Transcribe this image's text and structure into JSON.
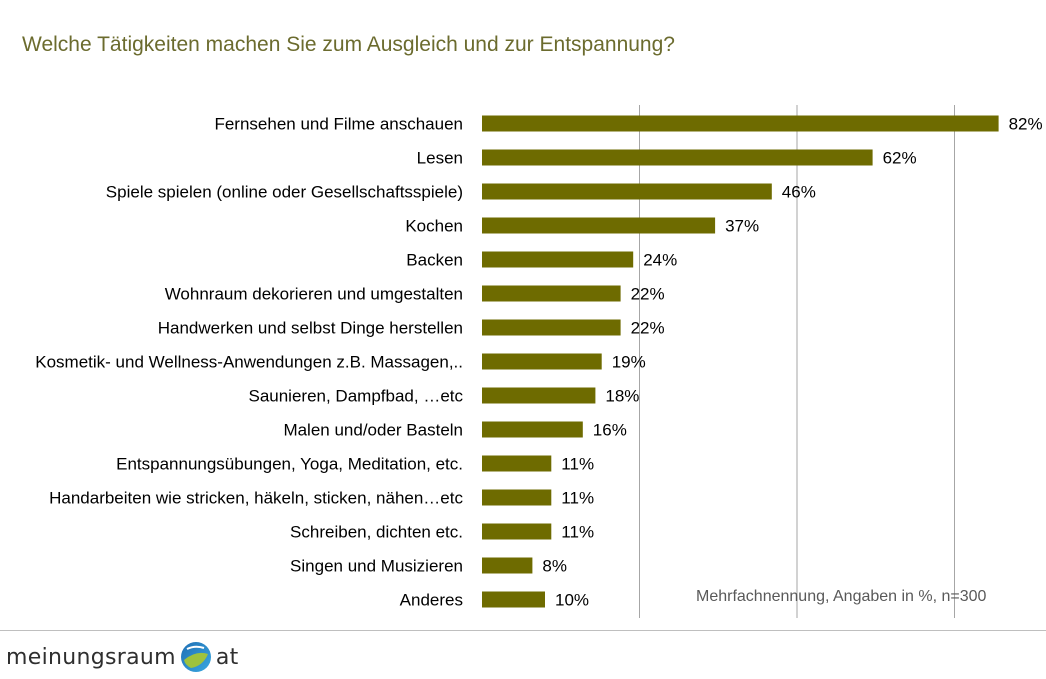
{
  "title": "Welche Tätigkeiten machen Sie zum Ausgleich und zur Entspannung?",
  "note": "Mehrfachnennung, Angaben in %, n=300",
  "logo": {
    "text_left": "meinungsraum",
    "text_right": "at",
    "icon": "globe-icon"
  },
  "colors": {
    "bar": "#6e6b00",
    "title": "#6b6b2e",
    "grid": "#a6a6a6"
  },
  "chart_data": {
    "type": "bar",
    "orientation": "horizontal",
    "title": "Welche Tätigkeiten machen Sie zum Ausgleich und zur Entspannung?",
    "xlim": [
      0,
      100
    ],
    "grid": true,
    "categories": [
      "Fernsehen und Filme anschauen",
      "Lesen",
      "Spiele spielen (online oder Gesellschaftsspiele)",
      "Kochen",
      "Backen",
      "Wohnraum dekorieren und umgestalten",
      "Handwerken und selbst Dinge herstellen",
      "Kosmetik- und Wellness-Anwendungen z.B. Massagen,..",
      "Saunieren, Dampfbad, …etc",
      "Malen und/oder Basteln",
      "Entspannungsübungen, Yoga, Meditation, etc.",
      "Handarbeiten wie stricken, häkeln, sticken, nähen…etc",
      "Schreiben, dichten etc.",
      "Singen und Musizieren",
      "Anderes"
    ],
    "values": [
      82,
      62,
      46,
      37,
      24,
      22,
      22,
      19,
      18,
      16,
      11,
      11,
      11,
      8,
      10
    ],
    "value_labels": [
      "82%",
      "62%",
      "46%",
      "37%",
      "24%",
      "22%",
      "22%",
      "19%",
      "18%",
      "16%",
      "11%",
      "11%",
      "11%",
      "8%",
      "10%"
    ]
  }
}
